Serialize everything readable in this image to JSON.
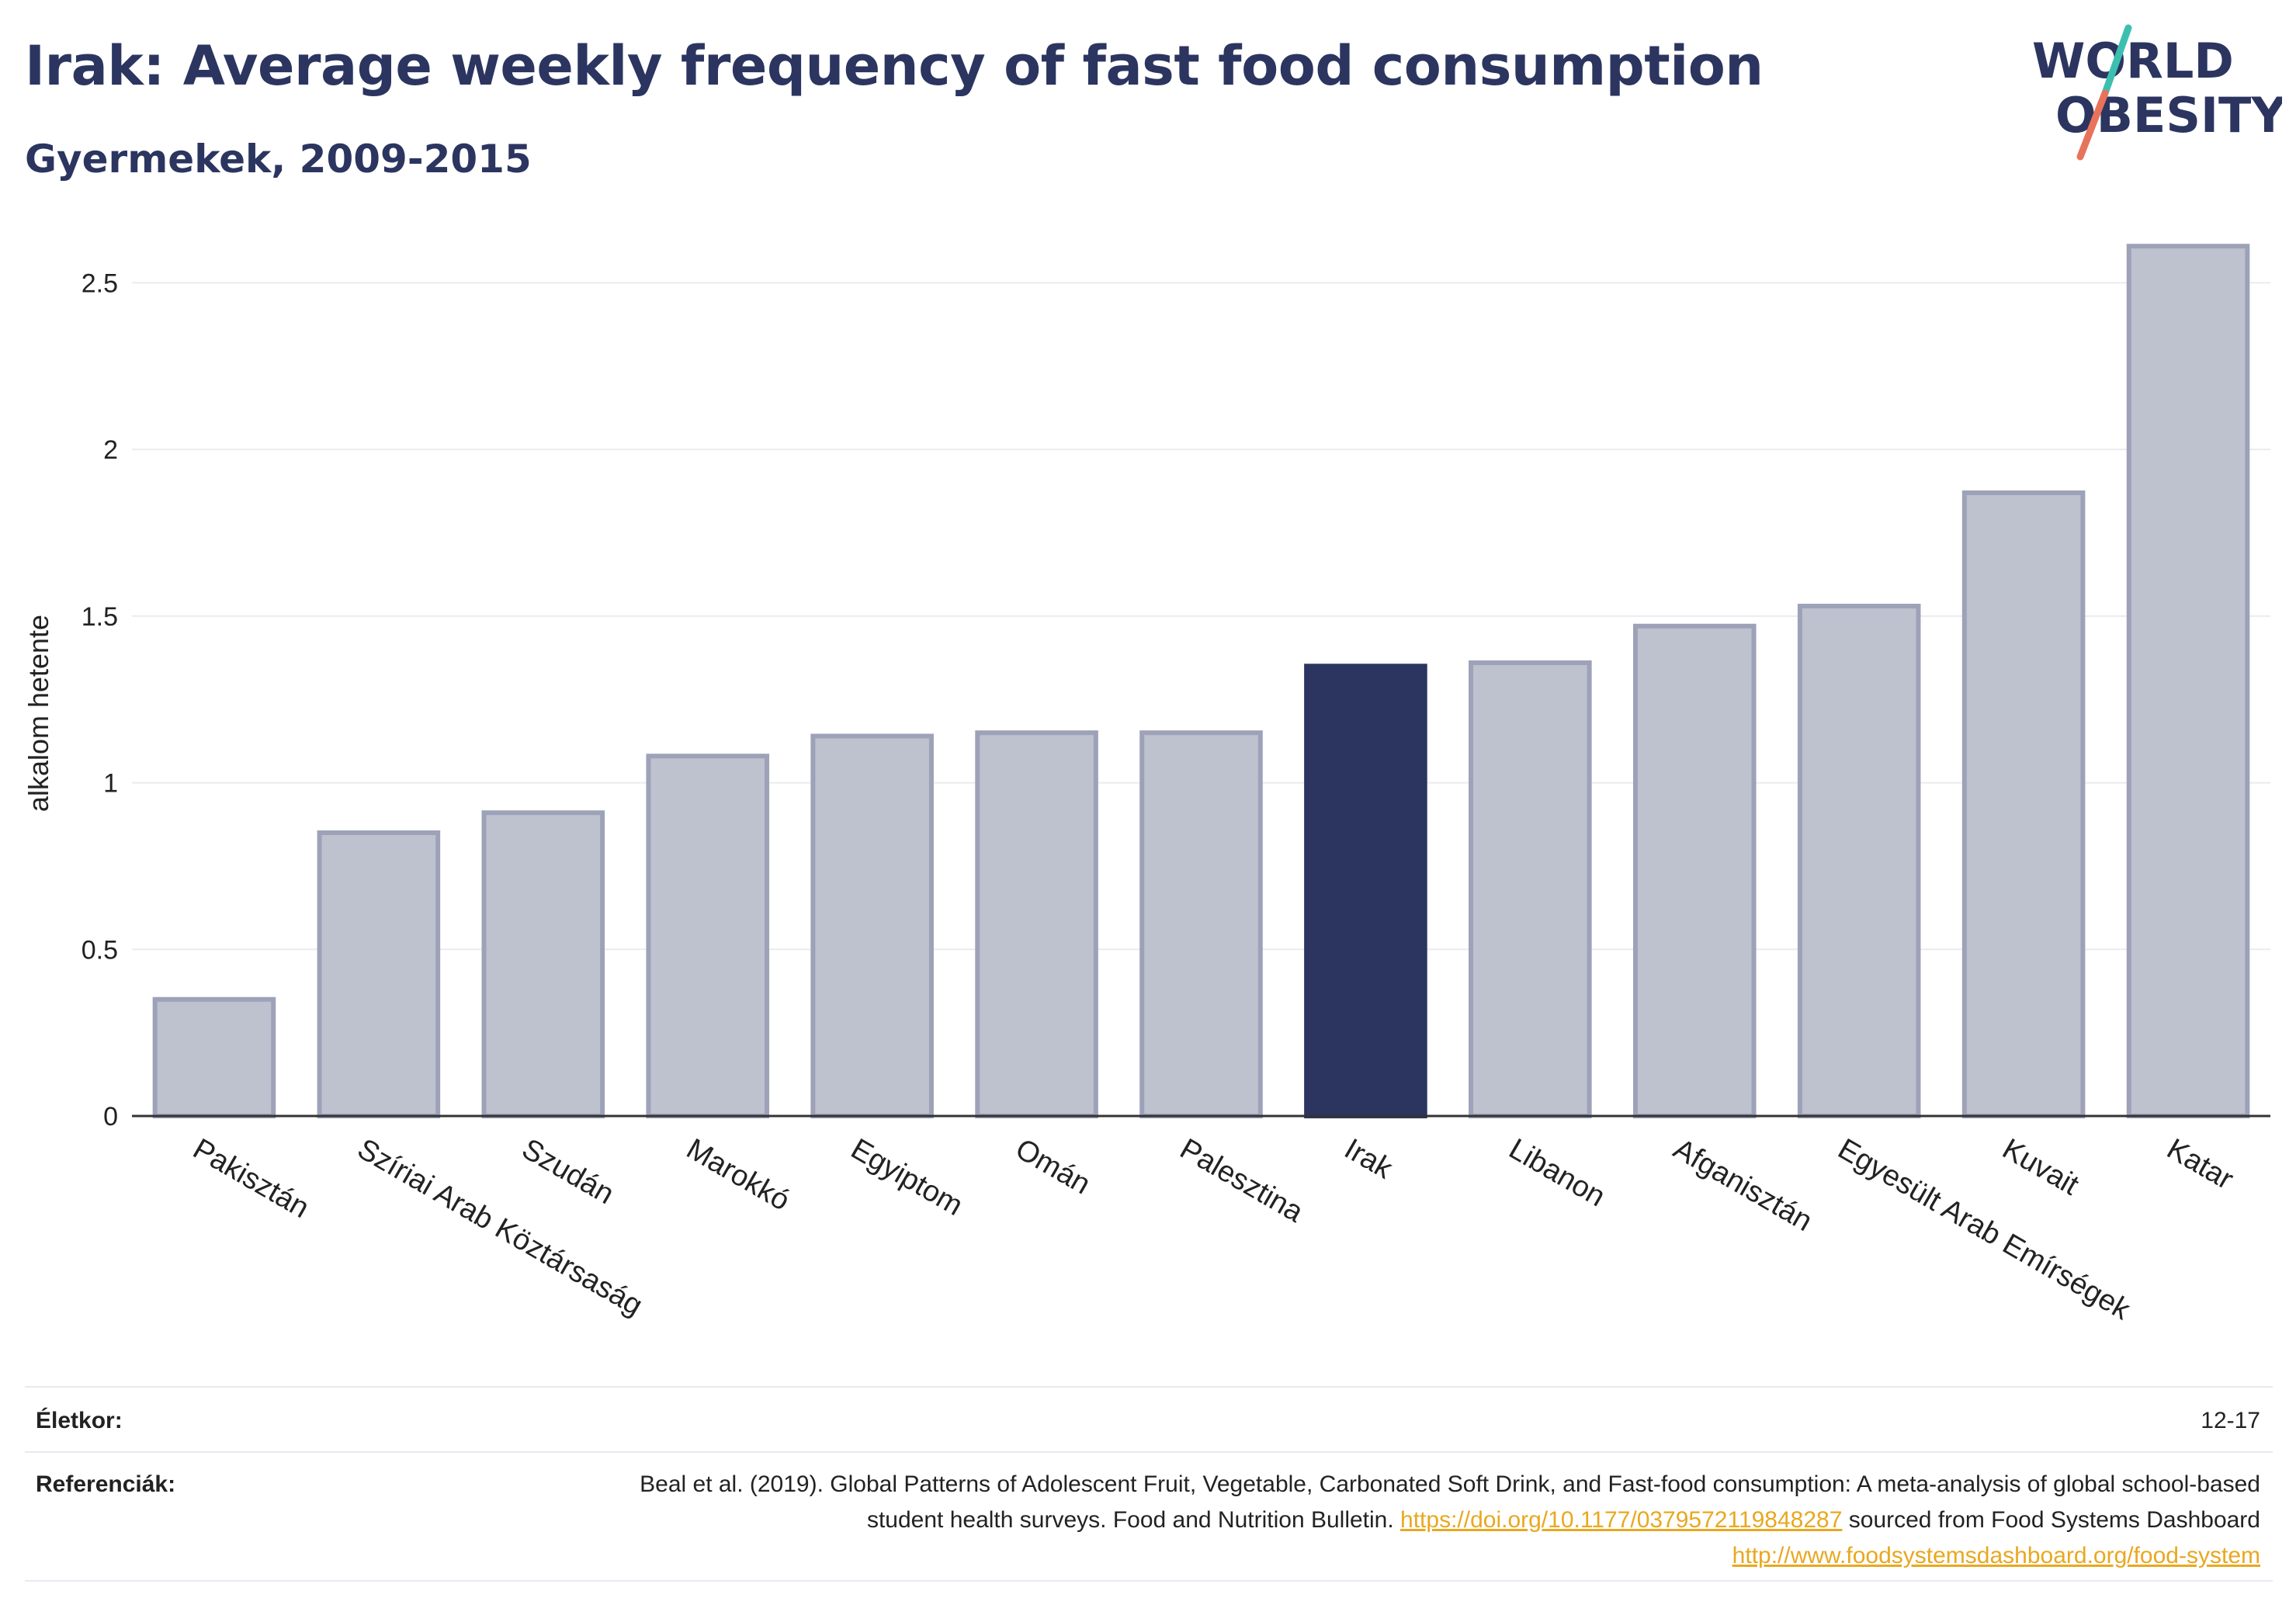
{
  "header": {
    "title": "Irak: Average weekly frequency of fast food consumption",
    "subtitle": "Gyermekek, 2009-2015"
  },
  "logo": {
    "line1": "WORLD",
    "line2": "OBESITY"
  },
  "colors": {
    "highlight": "#2b3560",
    "bar_fill": "#bec1ce",
    "bar_stroke": "#9da2b8",
    "title": "#2b3560",
    "link": "#e8a820",
    "logo_teal": "#3dbfb0",
    "logo_coral": "#e8735a"
  },
  "chart_data": {
    "type": "bar",
    "ylabel": "alkalom hetente",
    "ylim": [
      0,
      2.65
    ],
    "yticks": [
      0,
      0.5,
      1,
      1.5,
      2,
      2.5
    ],
    "ytick_labels": [
      "0",
      "0.5",
      "1",
      "1.5",
      "2",
      "2.5"
    ],
    "grid": true,
    "highlight": "Irak",
    "categories": [
      "Pakisztán",
      "Szíriai Arab Köztársaság",
      "Szudán",
      "Marokkó",
      "Egyiptom",
      "Omán",
      "Palesztina",
      "Irak",
      "Libanon",
      "Afganisztán",
      "Egyesült Arab Emírségek",
      "Kuvait",
      "Katar"
    ],
    "values": [
      0.35,
      0.85,
      0.91,
      1.08,
      1.14,
      1.15,
      1.15,
      1.35,
      1.36,
      1.47,
      1.53,
      1.87,
      2.61
    ]
  },
  "footer": {
    "age_label": "Életkor:",
    "age_value": "12-17",
    "refs_label": "Referenciák:",
    "refs_text1": "Beal et al. (2019). Global Patterns of Adolescent Fruit, Vegetable, Carbonated Soft Drink, and Fast-food consumption: A meta-analysis of global school-based student health surveys. Food and Nutrition Bulletin. ",
    "refs_link1": "https://doi.org/10.1177/0379572119848287",
    "refs_text2": " sourced from Food Systems Dashboard ",
    "refs_link2": "http://www.foodsystemsdashboard.org/food-system"
  }
}
